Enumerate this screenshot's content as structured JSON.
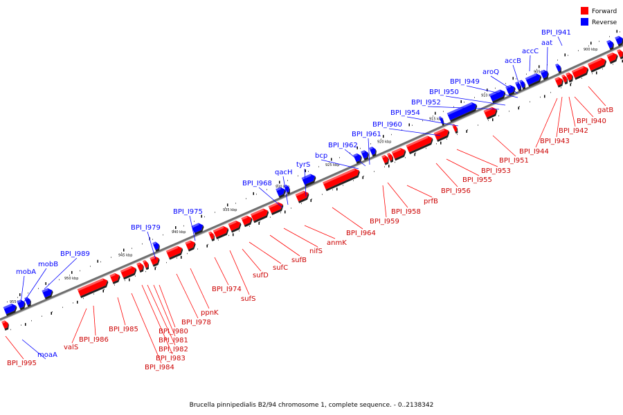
{
  "title": "Brucella pinnipedialis B2/94 chromosome 1, complete sequence. - 0..2138342",
  "legend": [
    {
      "label": "Forward",
      "color": "#ff0000"
    },
    {
      "label": "Reverse",
      "color": "#0000ff"
    }
  ],
  "colors": {
    "forward": "#ff0000",
    "reverse": "#0000ff",
    "backbone": "#7f7f7f"
  },
  "kbp_marks": [
    "900 kbp",
    "905 kbp",
    "910 kbp",
    "915 kbp",
    "920 kbp",
    "925 kbp",
    "930 kbp",
    "935 kbp",
    "940 kbp",
    "945 kbp",
    "950 kbp",
    "955 kbp"
  ],
  "reverse_labels": [
    "BPI_I941",
    "aat",
    "accC",
    "accB",
    "aroQ",
    "BPI_I949",
    "BPI_I950",
    "BPI_I952",
    "BPI_I954",
    "BPI_I960",
    "BPI_I961",
    "BPI_I962",
    "bcp",
    "tyrS",
    "qacH",
    "BPI_I968",
    "BPI_I975",
    "BPI_I979",
    "BPI_I989",
    "mobB",
    "mobA",
    "moaA"
  ],
  "forward_labels": [
    "gatB",
    "BPI_I940",
    "BPI_I942",
    "BPI_I943",
    "BPI_I944",
    "BPI_I951",
    "BPI_I953",
    "BPI_I955",
    "BPI_I956",
    "prfB",
    "BPI_I958",
    "BPI_I959",
    "BPI_I964",
    "anmK",
    "nifS",
    "sufB",
    "sufC",
    "sufD",
    "sufS",
    "BPI_I974",
    "ppnK",
    "BPI_I978",
    "BPI_I980",
    "BPI_I981",
    "BPI_I982",
    "BPI_I983",
    "BPI_I984",
    "BPI_I985",
    "BPI_I986",
    "valS",
    "BPI_I995"
  ]
}
